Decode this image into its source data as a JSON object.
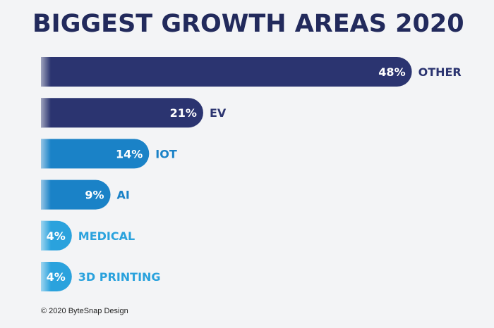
{
  "title": "BIGGEST GROWTH AREAS 2020",
  "footer": "© 2020 ByteSnap Design",
  "colors": {
    "background": "#f3f4f6",
    "title": "#222a5c",
    "navy": "#2b3470",
    "mid_blue": "#1a82c7",
    "light_blue": "#2aa2dd",
    "value_text": "#ffffff"
  },
  "chart_data": {
    "type": "bar",
    "orientation": "horizontal",
    "title": "BIGGEST GROWTH AREAS 2020",
    "categories": [
      "OTHER",
      "EV",
      "IOT",
      "AI",
      "MEDICAL",
      "3D PRINTING"
    ],
    "values": [
      48,
      21,
      14,
      9,
      4,
      4
    ],
    "value_labels": [
      "48%",
      "21%",
      "14%",
      "9%",
      "4%",
      "4%"
    ],
    "bar_colors": [
      "#2b3470",
      "#2b3470",
      "#1a82c7",
      "#1a82c7",
      "#2aa2dd",
      "#2aa2dd"
    ],
    "grid": false,
    "legend": "none"
  }
}
